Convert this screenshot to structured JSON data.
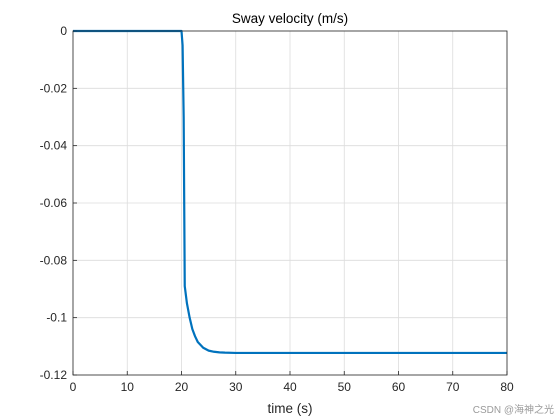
{
  "chart_data": {
    "type": "line",
    "title": "Sway velocity (m/s)",
    "xlabel": "time (s)",
    "ylabel": "",
    "xlim": [
      0,
      80
    ],
    "ylim": [
      -0.12,
      0
    ],
    "xticks": [
      0,
      10,
      20,
      30,
      40,
      50,
      60,
      70,
      80
    ],
    "yticks": [
      0,
      -0.02,
      -0.04,
      -0.06,
      -0.08,
      -0.1,
      -0.12
    ],
    "xtick_labels": [
      "0",
      "10",
      "20",
      "30",
      "40",
      "50",
      "60",
      "70",
      "80"
    ],
    "ytick_labels": [
      "0",
      "-0.02",
      "-0.04",
      "-0.06",
      "-0.08",
      "-0.1",
      "-0.12"
    ],
    "grid": true,
    "legend": "none",
    "series": [
      {
        "color": "#0072BD",
        "x": [
          0,
          19.5,
          20.0,
          20.2,
          20.4,
          20.5,
          20.6,
          21.0,
          21.5,
          22.0,
          22.5,
          23.0,
          24.0,
          25.0,
          26.0,
          27.0,
          28.0,
          30.0,
          35.0,
          40.0,
          50.0,
          60.0,
          70.0,
          80.0
        ],
        "y": [
          0,
          0,
          0,
          -0.005,
          -0.03,
          -0.06,
          -0.089,
          -0.095,
          -0.1,
          -0.104,
          -0.1065,
          -0.1085,
          -0.1105,
          -0.1115,
          -0.1119,
          -0.1121,
          -0.1122,
          -0.1123,
          -0.1123,
          -0.1123,
          -0.1123,
          -0.1123,
          -0.1123,
          -0.1123
        ]
      }
    ]
  },
  "watermark": "CSDN @海神之光"
}
